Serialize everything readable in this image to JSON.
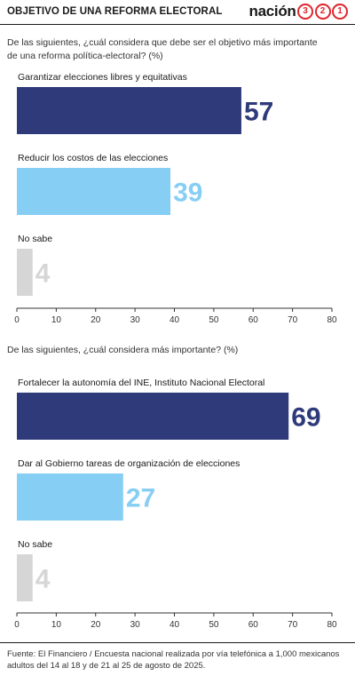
{
  "header": {
    "title": "OBJETIVO DE UNA REFORMA ELECTORAL",
    "brand_word": "nación",
    "brand_digits": [
      "3",
      "2",
      "1"
    ]
  },
  "colors": {
    "navy": "#2e3a79",
    "light_blue": "#87cef5",
    "gray": "#d6d6d6",
    "brand_red": "#e0252b"
  },
  "chart_data": [
    {
      "type": "bar",
      "orientation": "horizontal",
      "title": "De las siguientes, ¿cuál considera que debe ser el objetivo más importante de una reforma política-electoral?   (%)",
      "categories": [
        "Garantizar elecciones libres y equitativas",
        "Reducir los costos de las elecciones",
        "No sabe"
      ],
      "values": [
        57,
        39,
        4
      ],
      "colors": [
        "#2e3a79",
        "#87cef5",
        "#d6d6d6"
      ],
      "xlim": [
        0,
        80
      ],
      "xticks": [
        0,
        10,
        20,
        30,
        40,
        50,
        60,
        70,
        80
      ]
    },
    {
      "type": "bar",
      "orientation": "horizontal",
      "title": "De las siguientes, ¿cuál considera más importante? (%)",
      "categories": [
        "Fortalecer la autonomía del INE, Instituto Nacional Electoral",
        "Dar al Gobierno tareas de organización de elecciones",
        "No sabe"
      ],
      "values": [
        69,
        27,
        4
      ],
      "colors": [
        "#2e3a79",
        "#87cef5",
        "#d6d6d6"
      ],
      "xlim": [
        0,
        80
      ],
      "xticks": [
        0,
        10,
        20,
        30,
        40,
        50,
        60,
        70,
        80
      ]
    }
  ],
  "footer": {
    "source": "Fuente: El Financiero / Encuesta nacional realizada por vía telefónica a 1,000 mexicanos adultos del 14 al 18 y de 21 al 25 de agosto de 2025."
  }
}
